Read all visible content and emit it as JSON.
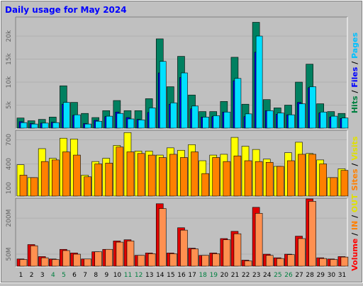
{
  "chart_data": {
    "type": "bar",
    "title": "Daily usage for May 2024",
    "days": [
      "1",
      "2",
      "3",
      "4",
      "5",
      "6",
      "7",
      "8",
      "9",
      "10",
      "11",
      "12",
      "13",
      "14",
      "15",
      "16",
      "17",
      "18",
      "19",
      "20",
      "21",
      "22",
      "23",
      "24",
      "25",
      "26",
      "27",
      "28",
      "29",
      "30",
      "31"
    ],
    "weekend_days": [
      4,
      5,
      11,
      12,
      18,
      19,
      25,
      26
    ],
    "panels": [
      {
        "id": "hits",
        "ylim": [
          0,
          24000
        ],
        "tick_labels": [
          {
            "value": 5000,
            "label": "5k"
          },
          {
            "value": 10000,
            "label": "10k"
          },
          {
            "value": 15000,
            "label": "15k"
          },
          {
            "value": 20000,
            "label": "20k"
          }
        ],
        "side_label": [
          {
            "text": "Hits",
            "color": "#008040"
          },
          {
            "text": " / ",
            "color": "#000000"
          },
          {
            "text": "Files",
            "color": "#0000ff"
          },
          {
            "text": " / ",
            "color": "#000000"
          },
          {
            "text": "Pages",
            "color": "#00c0ff"
          }
        ],
        "series": [
          {
            "color": "#008060",
            "values": [
              2200,
              1600,
              1900,
              2400,
              9200,
              5600,
              3200,
              2300,
              3800,
              6000,
              3800,
              3800,
              6400,
              19400,
              9000,
              15600,
              7200,
              3600,
              3600,
              5800,
              15400,
              5200,
              23000,
              6200,
              4400,
              5000,
              10000,
              13900,
              5300,
              3600,
              3200
            ]
          },
          {
            "color": "#0000ff",
            "values": [
              1400,
              1000,
              1100,
              1300,
              5200,
              2800,
              1000,
              1700,
              2500,
              3500,
              2300,
              1900,
              3400,
              12000,
              5200,
              11000,
              4200,
              2400,
              2500,
              3500,
              10300,
              2500,
              16500,
              3800,
              3000,
              2900,
              5600,
              8800,
              3300,
              2400,
              2100
            ]
          },
          {
            "color": "#00e0ff",
            "values": [
              1200,
              900,
              1100,
              1200,
              5600,
              2900,
              900,
              1500,
              2600,
              3200,
              2000,
              1800,
              4400,
              14500,
              5500,
              12000,
              4800,
              2400,
              2700,
              3500,
              10800,
              3100,
              20000,
              3800,
              3300,
              2900,
              5300,
              9000,
              3500,
              2600,
              2200
            ]
          }
        ]
      },
      {
        "id": "visits",
        "ylim": [
          0,
          810
        ],
        "tick_labels": [
          {
            "value": 100,
            "label": "100"
          },
          {
            "value": 400,
            "label": "400"
          },
          {
            "value": 700,
            "label": "700"
          }
        ],
        "side_label": [
          {
            "text": "Sites",
            "color": "#ff8000"
          },
          {
            "text": " / ",
            "color": "#000000"
          },
          {
            "text": "Visits",
            "color": "#e0e000"
          }
        ],
        "series": [
          {
            "color": "#ffff00",
            "values": [
              390,
              230,
              590,
              470,
              720,
              710,
              260,
              430,
              470,
              630,
              790,
              560,
              560,
              510,
              600,
              570,
              640,
              440,
              510,
              520,
              730,
              620,
              580,
              460,
              370,
              540,
              670,
              530,
              450,
              230,
              340
            ]
          },
          {
            "color": "#ff8000",
            "values": [
              260,
              230,
              430,
              450,
              550,
              510,
              240,
              400,
              410,
              610,
              550,
              530,
              510,
              480,
              520,
              480,
              550,
              280,
              480,
              430,
              500,
              440,
              430,
              420,
              370,
              440,
              520,
              520,
              400,
              230,
              320
            ]
          }
        ]
      },
      {
        "id": "volume",
        "ylim": [
          0,
          280
        ],
        "tick_labels": [
          {
            "value": 50,
            "label": "50M"
          },
          {
            "value": 200,
            "label": "200M"
          }
        ],
        "side_label": [
          {
            "text": "Volume",
            "color": "#ff0000"
          },
          {
            "text": " / ",
            "color": "#000000"
          },
          {
            "text": "IN",
            "color": "#ff8000"
          },
          {
            "text": " / ",
            "color": "#000000"
          },
          {
            "text": "OUT",
            "color": "#e0e000"
          }
        ],
        "series": [
          {
            "color": "#e00000",
            "values": [
              30,
              90,
              40,
              30,
              70,
              55,
              30,
              60,
              70,
              105,
              110,
              45,
              55,
              260,
              55,
              160,
              75,
              45,
              55,
              115,
              145,
              25,
              245,
              50,
              35,
              50,
              125,
              280,
              35,
              30,
              40
            ]
          },
          {
            "color": "#ff9050",
            "values": [
              28,
              85,
              35,
              28,
              65,
              50,
              30,
              60,
              70,
              100,
              105,
              45,
              52,
              240,
              52,
              150,
              72,
              45,
              52,
              110,
              135,
              22,
              220,
              45,
              32,
              48,
              115,
              270,
              32,
              28,
              38
            ]
          }
        ]
      }
    ]
  }
}
